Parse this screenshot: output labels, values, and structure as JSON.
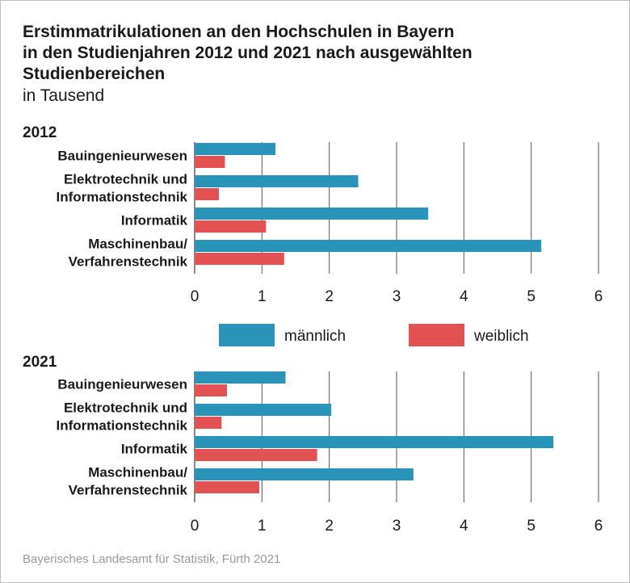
{
  "title_lines": [
    "Erstimmatrikulationen an den Hochschulen in Bayern",
    "in den Studienjahren 2012 und 2021 nach ausgewählten",
    "Studienbereichen"
  ],
  "subtitle": "in Tausend",
  "source": "Bayerisches Landesamt für Statistik, Fürth 2021",
  "colors": {
    "maennlich": "#2a93b8",
    "weiblich": "#e25252",
    "grid": "#555555"
  },
  "legend": [
    {
      "label": "männlich",
      "color": "#2a93b8"
    },
    {
      "label": "weiblich",
      "color": "#e25252"
    }
  ],
  "chart_data": [
    {
      "type": "bar",
      "orientation": "horizontal",
      "panel_label": "2012",
      "categories": [
        [
          "Bauingenieurwesen"
        ],
        [
          "Elektrotechnik und",
          "Informationstechnik"
        ],
        [
          "Informatik"
        ],
        [
          "Maschinenbau/",
          "Verfahrenstechnik"
        ]
      ],
      "series": [
        {
          "name": "männlich",
          "values": [
            1.2,
            2.43,
            3.47,
            5.15
          ]
        },
        {
          "name": "weiblich",
          "values": [
            0.45,
            0.36,
            1.06,
            1.33
          ]
        }
      ],
      "xlim": [
        0,
        6
      ],
      "xticks": [
        "0",
        "1",
        "2",
        "3",
        "4",
        "5",
        "6"
      ],
      "grid": true
    },
    {
      "type": "bar",
      "orientation": "horizontal",
      "panel_label": "2021",
      "categories": [
        [
          "Bauingenieurwesen"
        ],
        [
          "Elektrotechnik und",
          "Informationstechnik"
        ],
        [
          "Informatik"
        ],
        [
          "Maschinenbau/",
          "Verfahrenstechnik"
        ]
      ],
      "series": [
        {
          "name": "männlich",
          "values": [
            1.35,
            2.03,
            5.33,
            3.25
          ]
        },
        {
          "name": "weiblich",
          "values": [
            0.48,
            0.4,
            1.82,
            0.96
          ]
        }
      ],
      "xlim": [
        0,
        6
      ],
      "xticks": [
        "0",
        "1",
        "2",
        "3",
        "4",
        "5",
        "6"
      ],
      "grid": true
    }
  ]
}
